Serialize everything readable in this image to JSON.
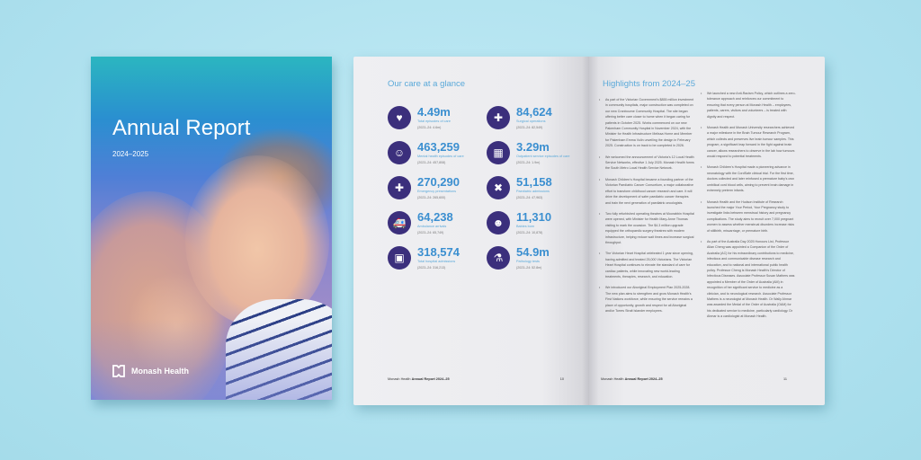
{
  "cover": {
    "title": "Annual Report",
    "year": "2024–2025",
    "logo": "Monash Health",
    "logo_icon": "monash-health-logo"
  },
  "left_page": {
    "title": "Our care at a glance",
    "icon_color": "#3b2f7c",
    "value_color": "#3b8fd0",
    "stats": [
      {
        "icon": "heart-hand-icon",
        "glyph": "♥",
        "value": "4.49m",
        "label": "Total episodes of care",
        "prev": "(2023–24: 4.6m)"
      },
      {
        "icon": "surgery-table-icon",
        "glyph": "✚",
        "value": "84,624",
        "label": "Surgical operations",
        "prev": "(2023–24: 82,549)"
      },
      {
        "icon": "mental-health-icon",
        "glyph": "☺",
        "value": "463,259",
        "label": "Mental health episodes of care",
        "prev": "(2023–24: 457,808)"
      },
      {
        "icon": "calendar-icon",
        "glyph": "▦",
        "value": "3.29m",
        "label": "Outpatient service episodes of care",
        "prev": "(2023–24: 1.9m)"
      },
      {
        "icon": "medical-cross-icon",
        "glyph": "✚",
        "value": "270,290",
        "label": "Emergency presentations",
        "prev": "(2023–24: 265,600)"
      },
      {
        "icon": "bandage-icon",
        "glyph": "✖",
        "value": "51,158",
        "label": "Paediatric admissions",
        "prev": "(2023–24: 47,963)"
      },
      {
        "icon": "ambulance-icon",
        "glyph": "🚑",
        "value": "64,238",
        "label": "Ambulance arrivals",
        "prev": "(2023–24: 65,749)"
      },
      {
        "icon": "baby-icon",
        "glyph": "☻",
        "value": "11,310",
        "label": "Babies born",
        "prev": "(2023–24: 10,878)"
      },
      {
        "icon": "hospital-icon",
        "glyph": "▣",
        "value": "318,574",
        "label": "Total hospital admissions",
        "prev": "(2023–24: 316,213)"
      },
      {
        "icon": "microscope-icon",
        "glyph": "⚗",
        "value": "54.9m",
        "label": "Pathology tests",
        "prev": "(2023–24: 52.8m)"
      }
    ],
    "footer": "Monash Health ",
    "footer_bold": "Annual Report 2024–25",
    "page_number": "10"
  },
  "right_page": {
    "title": "Highlights from 2024–25",
    "bullets_left": [
      "As part of the Victorian Government's $855 million investment in community hospitals, major construction was completed on our new Cranbourne Community Hospital. The site began offering better care closer to home when it began caring for patients in October 2025. Works commenced on our new Pakenham Community Hospital in November 2024, with the Minister for Health Infrastructure Melissa Horne and Member for Pakenham Emma Vulin unveiling the design in February 2025. Construction is on track to be completed in 2026.",
      "We welcomed the announcement of Victoria's 12 Local Health Service Networks, effective 1 July 2025. Monash Health forms the South Metro Local Health Service Network.",
      "Monash Children's Hospital became a founding partner of the Victorian Paediatric Cancer Consortium, a major collaborative effort to transform childhood cancer research and care. It will drive the development of safer paediatric cancer therapies and train the next generation of paediatric oncologists.",
      "Two fully refurbished operating theatres at Moorabbin Hospital were opened, with Minister for Health Mary-Anne Thomas visiting to mark the occasion. The $4.3 million upgrade equipped the orthopaedic surgery theatres with modern infrastructure, helping reduce wait times and increase surgical throughput.",
      "The Victorian Heart Hospital celebrated 1 year since opening, having admitted and treated 25,000 Victorians. The Victorian Heart Hospital continues to elevate the standard of care for cardiac patients, while innovating new world-leading treatments, therapies, research, and education.",
      "We introduced our Aboriginal Employment Plan 2025-2028. The new plan aims to strengthen and grow Monash Health's First Nations workforce, while ensuring the service remains a place of opportunity, growth and respect for all Aboriginal and/or Torres Strait Islander employees."
    ],
    "bullets_right": [
      "We launched a new Anti-Racism Policy, which outlines a zero-tolerance approach and reinforces our commitment to ensuring that every person at Monash Health – employees, patients, carers, visitors and volunteers – is treated with dignity and respect.",
      "Monash Health and Monash University researchers achieved a major milestone in the Brain Tumour Research Program, which collects and preserves live brain tumour samples. This program, a significant leap forward in the fight against brain cancer, allows researchers to observe in the lab how tumours would respond to potential treatments.",
      "Monash Children's Hospital made a pioneering advance in neonatology with the CordSafe clinical trial. For the first time, doctors collected and later reinfused a premature baby's own umbilical cord blood cells, aiming to prevent brain damage in extremely preterm infants.",
      "Monash Health and the Hudson Institute of Research launched the major Your Period, Your Pregnancy study to investigate links between menstrual history and pregnancy complications. The study aims to recruit over 7,000 pregnant women to assess whether menstrual disorders increase risks of stillbirth, miscarriage, or premature birth.",
      "As part of the Australia Day 2025 Honours List, Professor Allan Cheng was appointed a Companion of the Order of Australia (AC) for his extraordinary contributions to medicine, infectious and communicable disease research and education, and to national and international public health policy. Professor Cheng is Monash Health's Director of Infectious Diseases. Associate Professor Susan Mathers was appointed a Member of the Order of Australia (AM) in recognition of her significant service to medicine as a clinician, and to neurological research. Associate Professor Mathers is a neurologist at Monash Health. Dr Wally Ahmar was awarded the Medal of the Order of Australia (OAM) for his dedicated service to medicine, particularly cardiology. Dr Ahmar is a cardiologist at Monash Health."
    ],
    "footer": "Monash Health ",
    "footer_bold": "Annual Report 2024–25",
    "page_number": "11"
  }
}
